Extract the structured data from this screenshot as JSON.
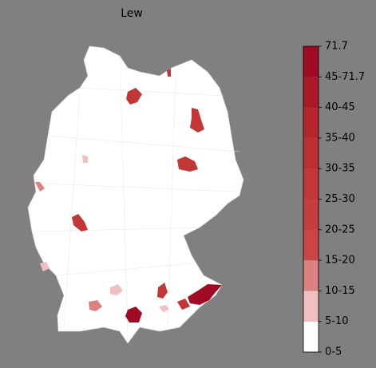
{
  "map": {
    "title": "Lew",
    "colorbar": {
      "labels": [
        "0-5",
        "5-10",
        "10-15",
        "15-20",
        "20-25",
        "25-30",
        "30-35",
        "35-40",
        "40-45",
        "45-71.7",
        "71.7"
      ],
      "colors": [
        "#ffffff",
        "#f0c0c0",
        "#dc8080",
        "#cb4545",
        "#c73d3d",
        "#c33636",
        "#bd2e33",
        "#b6252e",
        "#ab1828",
        "#a00a22"
      ]
    }
  }
}
